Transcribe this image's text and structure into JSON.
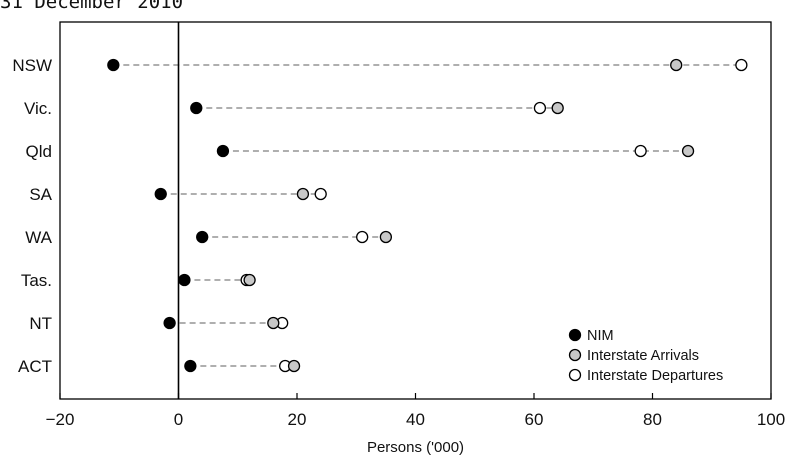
{
  "chart_data": {
    "type": "scatter",
    "title": "31 December 2010",
    "xlabel": "Persons ('000)",
    "ylabel": "",
    "xlim": [
      -20,
      100
    ],
    "xticks": [
      -20,
      0,
      20,
      40,
      60,
      80,
      100
    ],
    "xtick_labels": [
      "−20",
      "0",
      "20",
      "40",
      "60",
      "80",
      "100"
    ],
    "categories": [
      "NSW",
      "Vic.",
      "Qld",
      "SA",
      "WA",
      "Tas.",
      "NT",
      "ACT"
    ],
    "grid": false,
    "legend_position": "bottom-right",
    "series": [
      {
        "name": "NIM",
        "color": "#000000",
        "values": [
          -11,
          3,
          7.5,
          -3,
          4,
          1,
          -1.5,
          2
        ]
      },
      {
        "name": "Interstate Arrivals",
        "color": "#c8c8c8",
        "values": [
          84,
          64,
          86,
          21,
          35,
          12,
          16,
          19.5
        ]
      },
      {
        "name": "Interstate Departures",
        "color": "#ffffff",
        "values": [
          95,
          61,
          78,
          24,
          31,
          11.5,
          17.5,
          18
        ]
      }
    ]
  }
}
